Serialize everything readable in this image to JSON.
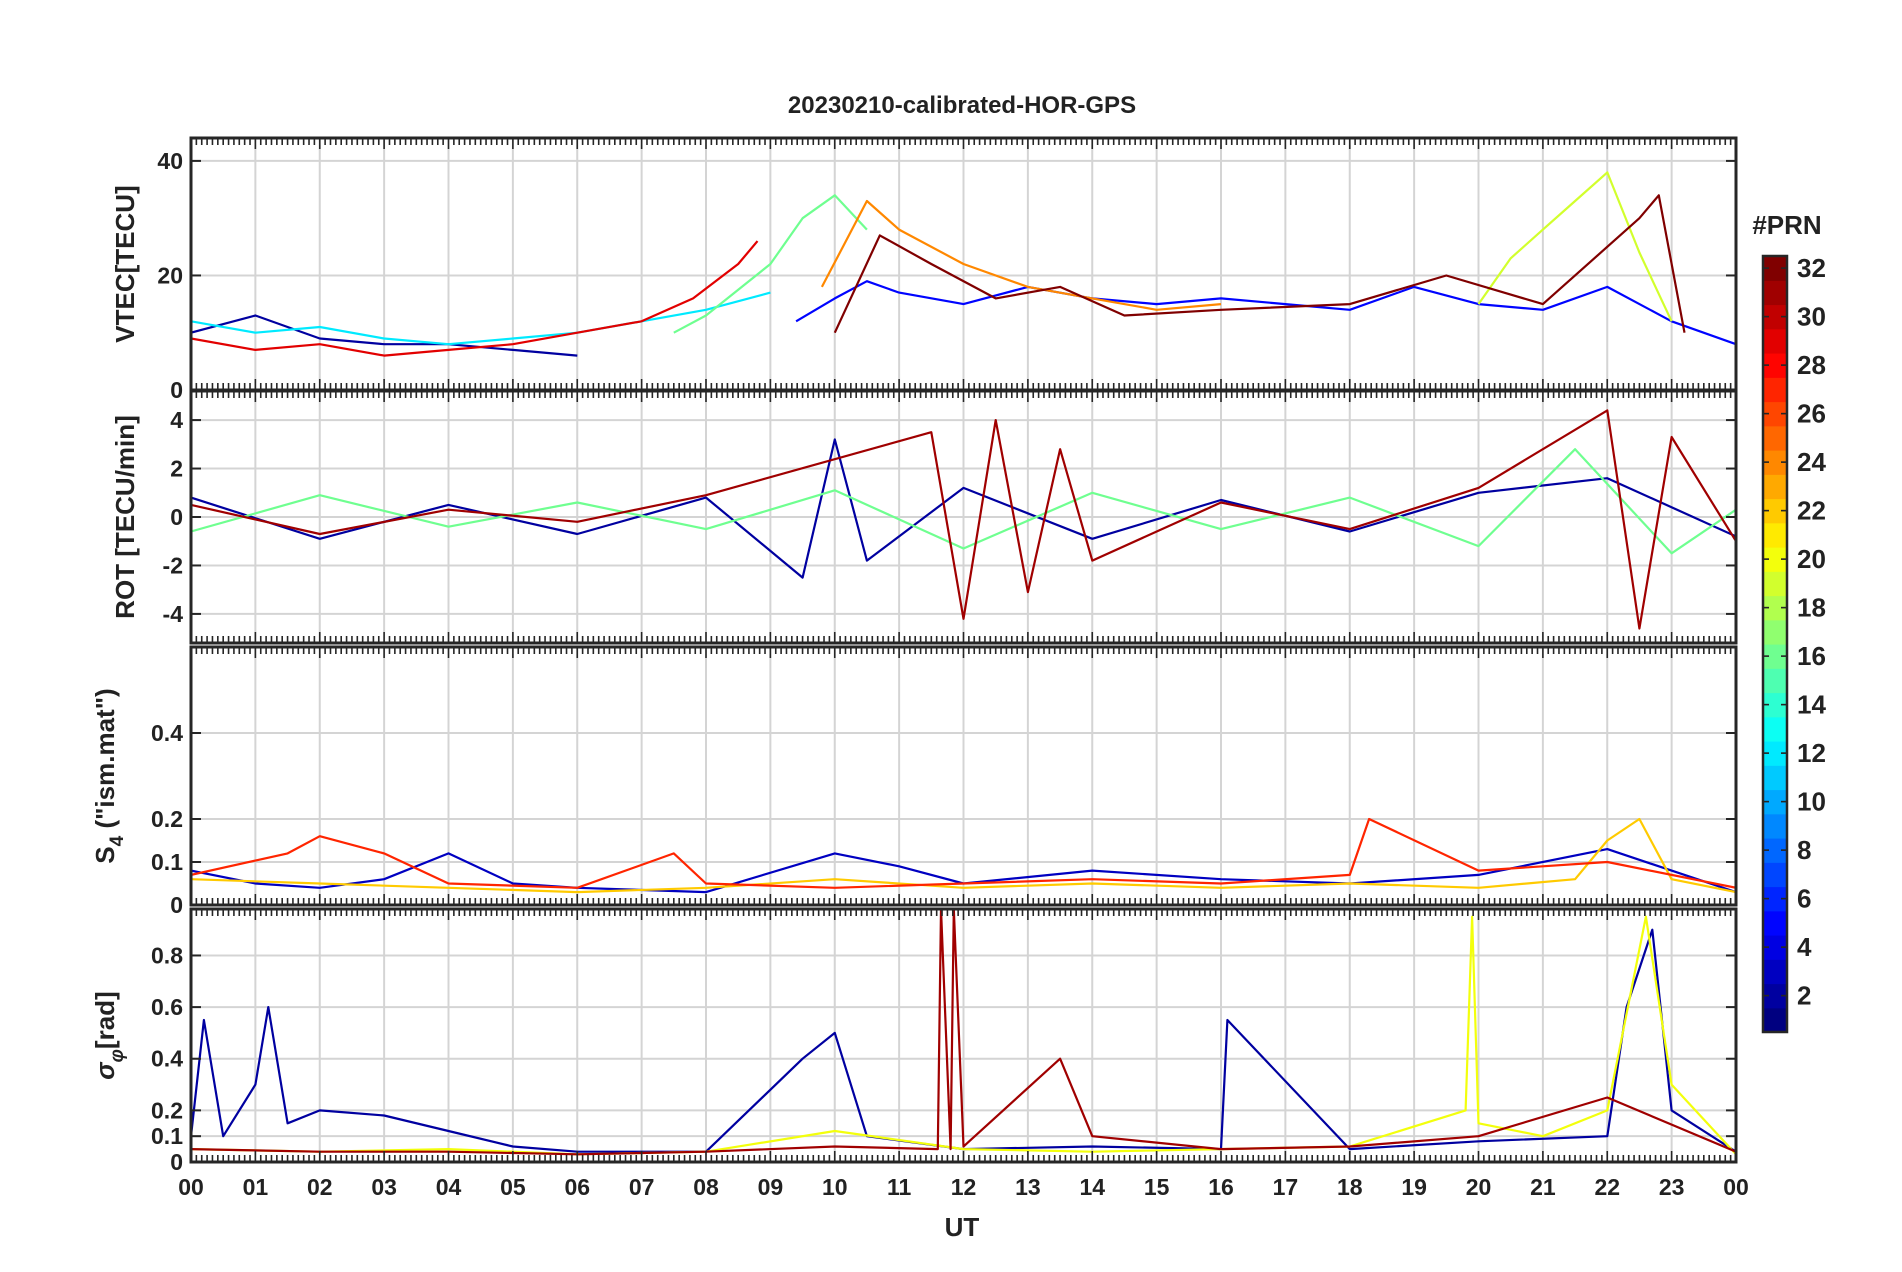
{
  "title": "20230210-calibrated-HOR-GPS",
  "chart_data": [
    {
      "type": "line",
      "panel": "vtec",
      "ylabel": "VTEC[TECU]",
      "ylim": [
        0,
        44
      ],
      "yticks": [
        0,
        20,
        40
      ],
      "ytick_labels": [
        "0",
        "20",
        "40"
      ],
      "grid": true,
      "series": [
        {
          "name": "PRN 2",
          "prn": 2,
          "x": [
            0,
            1,
            2,
            3,
            4,
            5,
            6
          ],
          "values": [
            10,
            13,
            9,
            8,
            8,
            7,
            6
          ]
        },
        {
          "name": "PRN 5",
          "prn": 5,
          "x": [
            9.4,
            10,
            10.5,
            11,
            12,
            13,
            14,
            15,
            16,
            17,
            18,
            19,
            20,
            21,
            22,
            23,
            24
          ],
          "values": [
            12,
            16,
            19,
            17,
            15,
            18,
            16,
            15,
            16,
            15,
            14,
            18,
            15,
            14,
            18,
            12,
            8
          ]
        },
        {
          "name": "PRN 12",
          "prn": 12,
          "x": [
            0,
            1,
            2,
            3,
            4,
            5,
            6,
            7,
            8,
            9
          ],
          "values": [
            12,
            10,
            11,
            9,
            8,
            9,
            10,
            12,
            14,
            17
          ]
        },
        {
          "name": "PRN 16",
          "prn": 16,
          "x": [
            7.5,
            8,
            9,
            9.5,
            10,
            10.5
          ],
          "values": [
            10,
            13,
            22,
            30,
            34,
            28
          ]
        },
        {
          "name": "PRN 19",
          "prn": 19,
          "x": [
            20,
            20.5,
            21,
            21.5,
            22,
            22.5,
            23
          ],
          "values": [
            15,
            23,
            28,
            33,
            38,
            24,
            12
          ]
        },
        {
          "name": "PRN 24",
          "prn": 24,
          "x": [
            9.8,
            10.5,
            11,
            12,
            13,
            14,
            15,
            16
          ],
          "values": [
            18,
            33,
            28,
            22,
            18,
            16,
            14,
            15
          ]
        },
        {
          "name": "PRN 29",
          "prn": 29,
          "x": [
            0,
            1,
            2,
            3,
            4,
            5,
            6,
            7,
            7.8,
            8.5,
            8.8
          ],
          "values": [
            9,
            7,
            8,
            6,
            7,
            8,
            10,
            12,
            16,
            22,
            26
          ]
        },
        {
          "name": "PRN 32",
          "prn": 32,
          "x": [
            10,
            10.7,
            11.5,
            12.5,
            13.5,
            14.5,
            16,
            18,
            19.5,
            21,
            22.5,
            22.8,
            23.2
          ],
          "values": [
            10,
            27,
            22,
            16,
            18,
            13,
            14,
            15,
            20,
            15,
            30,
            34,
            10
          ]
        }
      ]
    },
    {
      "type": "line",
      "panel": "rot",
      "ylabel": "ROT [TECU/min]",
      "ylim": [
        -5.2,
        5.2
      ],
      "yticks": [
        -4,
        -2,
        0,
        2,
        4
      ],
      "ytick_labels": [
        "-4",
        "-2",
        "0",
        "2",
        "4"
      ],
      "grid": true,
      "series": [
        {
          "name": "PRN 2",
          "prn": 2,
          "x": [
            0,
            2,
            4,
            6,
            8,
            9.5,
            10,
            10.5,
            12,
            14,
            16,
            18,
            20,
            22,
            24
          ],
          "values": [
            0.8,
            -0.9,
            0.5,
            -0.7,
            0.8,
            -2.5,
            3.2,
            -1.8,
            1.2,
            -0.9,
            0.7,
            -0.6,
            1.0,
            1.6,
            -0.8
          ]
        },
        {
          "name": "PRN 16",
          "prn": 16,
          "x": [
            0,
            2,
            4,
            6,
            8,
            10,
            12,
            14,
            16,
            18,
            20,
            21.5,
            23,
            24
          ],
          "values": [
            -0.6,
            0.9,
            -0.4,
            0.6,
            -0.5,
            1.1,
            -1.3,
            1.0,
            -0.5,
            0.8,
            -1.2,
            2.8,
            -1.5,
            0.3
          ]
        },
        {
          "name": "PRN 31",
          "prn": 31,
          "x": [
            0,
            2,
            4,
            6,
            8,
            11.5,
            12,
            12.5,
            13,
            13.5,
            14,
            16,
            18,
            20,
            22,
            22.5,
            23,
            24
          ],
          "values": [
            0.5,
            -0.7,
            0.3,
            -0.2,
            0.9,
            3.5,
            -4.2,
            4.0,
            -3.1,
            2.8,
            -1.8,
            0.6,
            -0.5,
            1.2,
            4.4,
            -4.6,
            3.3,
            -1.0
          ]
        }
      ]
    },
    {
      "type": "line",
      "panel": "s4",
      "ylabel": "S4 (\"ism.mat\")",
      "ylabel_main": "S",
      "ylabel_sub": "4",
      "ylabel_rest": " (\"ism.mat\")",
      "ylim": [
        0,
        0.6
      ],
      "yticks": [
        0,
        0.1,
        0.2,
        0.4
      ],
      "ytick_labels": [
        "0",
        "0.1",
        "0.2",
        "0.4"
      ],
      "grid": true,
      "series": [
        {
          "name": "PRN 3",
          "prn": 3,
          "x": [
            0,
            1,
            2,
            3,
            4,
            5,
            6,
            8,
            10,
            11,
            12,
            14,
            16,
            18,
            20,
            22,
            24
          ],
          "values": [
            0.08,
            0.05,
            0.04,
            0.06,
            0.12,
            0.05,
            0.04,
            0.03,
            0.12,
            0.09,
            0.05,
            0.08,
            0.06,
            0.05,
            0.07,
            0.13,
            0.03
          ]
        },
        {
          "name": "PRN 22",
          "prn": 22,
          "x": [
            0,
            2,
            4,
            6,
            8,
            10,
            12,
            14,
            16,
            18,
            20,
            21.5,
            22,
            22.5,
            23,
            24
          ],
          "values": [
            0.06,
            0.05,
            0.04,
            0.03,
            0.04,
            0.06,
            0.04,
            0.05,
            0.04,
            0.05,
            0.04,
            0.06,
            0.15,
            0.2,
            0.06,
            0.03
          ]
        },
        {
          "name": "PRN 27",
          "prn": 27,
          "x": [
            0,
            1.5,
            2,
            3,
            4,
            6,
            7.5,
            8,
            10,
            12,
            14,
            16,
            18,
            18.3,
            20,
            22,
            24
          ],
          "values": [
            0.07,
            0.12,
            0.16,
            0.12,
            0.05,
            0.04,
            0.12,
            0.05,
            0.04,
            0.05,
            0.06,
            0.05,
            0.07,
            0.2,
            0.08,
            0.1,
            0.04
          ]
        }
      ]
    },
    {
      "type": "line",
      "panel": "sigma",
      "ylabel": "σφ[rad]",
      "ylabel_main": "σ",
      "ylabel_sub": "φ",
      "ylabel_rest": "[rad]",
      "ylim": [
        0,
        0.98
      ],
      "yticks": [
        0,
        0.1,
        0.2,
        0.4,
        0.6,
        0.8
      ],
      "ytick_labels": [
        "0",
        "0.1",
        "0.2",
        "0.4",
        "0.6",
        "0.8"
      ],
      "grid": true,
      "series": [
        {
          "name": "PRN 2",
          "prn": 2,
          "x": [
            0,
            0.2,
            0.5,
            1,
            1.2,
            1.5,
            2,
            3,
            4,
            5,
            6,
            8,
            9.5,
            10,
            10.5,
            12,
            14,
            16,
            16.1,
            18,
            20,
            22,
            22.3,
            22.7,
            23,
            24
          ],
          "values": [
            0.1,
            0.55,
            0.1,
            0.3,
            0.6,
            0.15,
            0.2,
            0.18,
            0.12,
            0.06,
            0.04,
            0.04,
            0.4,
            0.5,
            0.1,
            0.05,
            0.06,
            0.05,
            0.55,
            0.05,
            0.08,
            0.1,
            0.6,
            0.9,
            0.2,
            0.04
          ]
        },
        {
          "name": "PRN 20",
          "prn": 20,
          "x": [
            0,
            2,
            4,
            6,
            8,
            10,
            12,
            14,
            16,
            18,
            19.8,
            19.9,
            20,
            21,
            22,
            22.6,
            23,
            24
          ],
          "values": [
            0.05,
            0.04,
            0.05,
            0.03,
            0.04,
            0.12,
            0.05,
            0.04,
            0.05,
            0.06,
            0.2,
            0.95,
            0.15,
            0.1,
            0.2,
            0.95,
            0.3,
            0.03
          ]
        },
        {
          "name": "PRN 31",
          "prn": 31,
          "x": [
            0,
            2,
            4,
            6,
            8,
            10,
            11.6,
            11.65,
            11.8,
            11.85,
            12,
            13.5,
            14,
            16,
            18,
            20,
            22,
            24
          ],
          "values": [
            0.05,
            0.04,
            0.04,
            0.03,
            0.04,
            0.06,
            0.05,
            0.98,
            0.05,
            0.98,
            0.06,
            0.4,
            0.1,
            0.05,
            0.06,
            0.1,
            0.25,
            0.04
          ]
        }
      ]
    }
  ],
  "xaxis": {
    "label": "UT",
    "range": [
      0,
      24
    ],
    "tick_labels": [
      "00",
      "01",
      "02",
      "03",
      "04",
      "05",
      "06",
      "07",
      "08",
      "09",
      "10",
      "11",
      "12",
      "13",
      "14",
      "15",
      "16",
      "17",
      "18",
      "19",
      "20",
      "21",
      "22",
      "23",
      "00"
    ]
  },
  "colorbar": {
    "title": "#PRN",
    "colormap": "jet",
    "range": [
      1,
      32
    ],
    "tick_labels": [
      "2",
      "4",
      "6",
      "8",
      "10",
      "12",
      "14",
      "16",
      "18",
      "20",
      "22",
      "24",
      "26",
      "28",
      "30",
      "32"
    ]
  }
}
